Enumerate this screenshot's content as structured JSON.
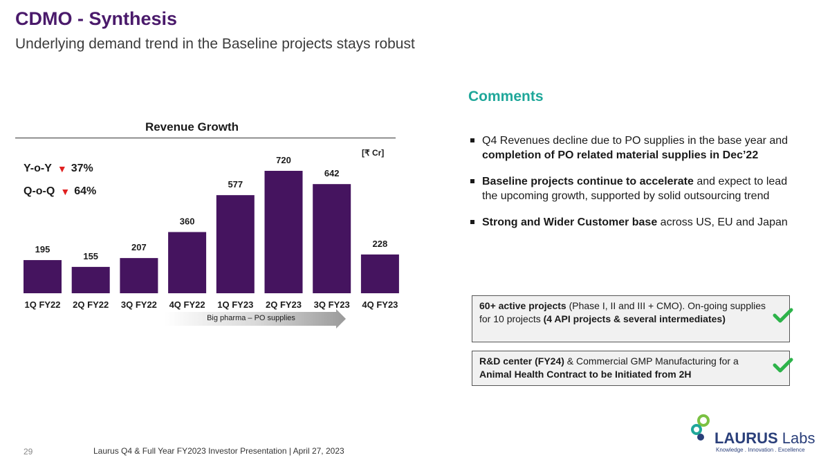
{
  "header": {
    "title": "CDMO - Synthesis",
    "subtitle": "Underlying demand trend in the Baseline projects stays robust"
  },
  "chart_data": {
    "type": "bar",
    "title": "Revenue Growth",
    "unit": "[₹ Cr]",
    "categories": [
      "1Q FY22",
      "2Q FY22",
      "3Q FY22",
      "4Q FY22",
      "1Q FY23",
      "2Q FY23",
      "3Q FY23",
      "4Q FY23"
    ],
    "values": [
      195,
      155,
      207,
      360,
      577,
      720,
      642,
      228
    ],
    "ylim": [
      0,
      800
    ],
    "grid": false,
    "bar_color": "#45145f",
    "xlabel": "",
    "ylabel": "",
    "annotation": "Big pharma – PO supplies"
  },
  "metrics": {
    "yoy": {
      "label": "Y-o-Y",
      "direction": "down",
      "value": "37%"
    },
    "qoq": {
      "label": "Q-o-Q",
      "direction": "down",
      "value": "64%"
    }
  },
  "comments": {
    "title": "Comments",
    "bullets": [
      {
        "plain": "Q4 Revenues decline due to PO supplies in the base year and ",
        "bold": "completion of PO related material supplies in Dec’22",
        "tail": ""
      },
      {
        "plain": "",
        "bold": "Baseline projects continue to accelerate",
        "tail": " and expect to lead the upcoming growth, supported by solid outsourcing trend"
      },
      {
        "plain": "",
        "bold": "Strong and Wider Customer base",
        "tail": " across US, EU and Japan"
      }
    ]
  },
  "boxes": {
    "projects": {
      "bold1": "60+ active projects",
      "plain1": " (Phase I, II and III + CMO). On-going supplies for 10 projects ",
      "bold2": "(4 API projects & several intermediates)"
    },
    "rd": {
      "bold1": "R&D center (FY24)",
      "plain1": " & Commercial GMP Manufacturing for a ",
      "bold2": "Animal Health Contract to be Initiated from 2H"
    },
    "check_color": "#2db34a",
    "check_icon": "checkmark-icon"
  },
  "footer": {
    "page_number": "29",
    "text": "Laurus Q4 & Full Year FY2023 Investor Presentation | April 27, 2023"
  },
  "logo": {
    "name": "LAURUS",
    "suffix": "Labs",
    "tagline": "Knowledge . Innovation . Excellence",
    "colors": [
      "#2a3f7a",
      "#7ac142",
      "#1fa79a"
    ]
  }
}
